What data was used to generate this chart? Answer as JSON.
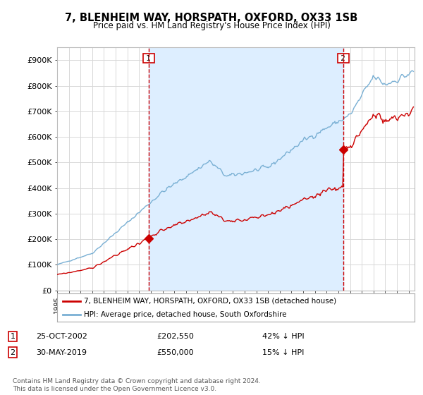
{
  "title": "7, BLENHEIM WAY, HORSPATH, OXFORD, OX33 1SB",
  "subtitle": "Price paid vs. HM Land Registry's House Price Index (HPI)",
  "legend_label_red": "7, BLENHEIM WAY, HORSPATH, OXFORD, OX33 1SB (detached house)",
  "legend_label_blue": "HPI: Average price, detached house, South Oxfordshire",
  "transaction1_date": "25-OCT-2002",
  "transaction1_price": "£202,550",
  "transaction1_hpi": "42% ↓ HPI",
  "transaction2_date": "30-MAY-2019",
  "transaction2_price": "£550,000",
  "transaction2_hpi": "15% ↓ HPI",
  "footer": "Contains HM Land Registry data © Crown copyright and database right 2024.\nThis data is licensed under the Open Government Licence v3.0.",
  "ylim": [
    0,
    950000
  ],
  "yticks": [
    0,
    100000,
    200000,
    300000,
    400000,
    500000,
    600000,
    700000,
    800000,
    900000
  ],
  "ytick_labels": [
    "£0",
    "£100K",
    "£200K",
    "£300K",
    "£400K",
    "£500K",
    "£600K",
    "£700K",
    "£800K",
    "£900K"
  ],
  "background_color": "#ffffff",
  "plot_bg_color": "#ffffff",
  "shade_color": "#ddeeff",
  "grid_color": "#d8d8d8",
  "red_color": "#cc0000",
  "blue_color": "#7ab0d4",
  "marker1_x": 2002.82,
  "marker1_y": 202550,
  "marker2_x": 2019.42,
  "marker2_y": 550000,
  "vline1_x": 2002.82,
  "vline2_x": 2019.42,
  "xlim_left": 1995.0,
  "xlim_right": 2025.5
}
